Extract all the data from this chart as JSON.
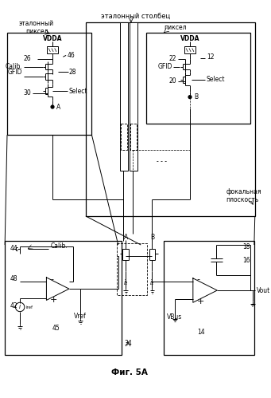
{
  "bg_color": "#ffffff",
  "fig_label": "Фиг. 5А",
  "label_ref_col": "эталонный столбец",
  "label_ref_pix": "эталонный\nпиксел",
  "label_pix": "пиксел",
  "label_focal": "фокальная\nплоскость"
}
